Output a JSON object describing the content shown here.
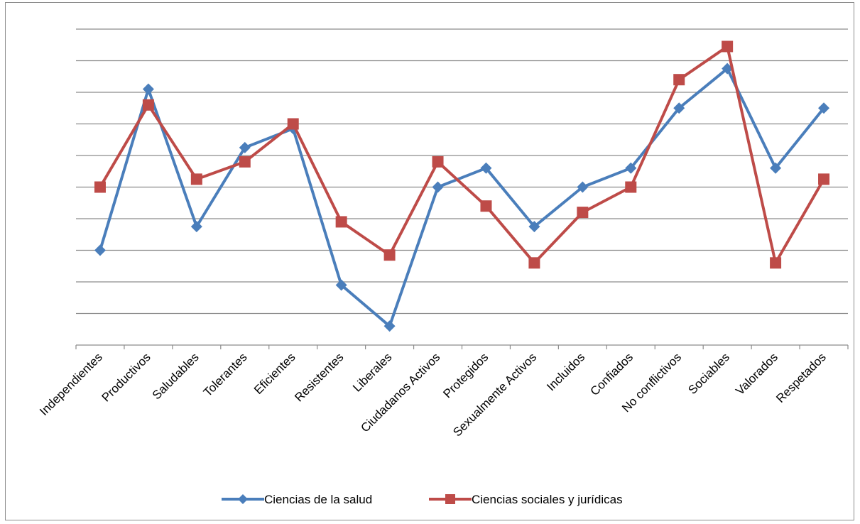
{
  "chart_data": {
    "type": "line",
    "title": "",
    "xlabel": "",
    "ylabel": "",
    "categories": [
      "Independientes",
      "Productivos",
      "Saludables",
      "Tolerantes",
      "Eficientes",
      "Resistentes",
      "Liberales",
      "Ciudadanos Activos",
      "Protegidos",
      "Sexualmente Activos",
      "Incluidos",
      "Confiados",
      "No conflictivos",
      "Sociables",
      "Valorados",
      "Respetados"
    ],
    "ylim": [
      0,
      10
    ],
    "grid": true,
    "y_tick_labels_visible": false,
    "legend_position": "bottom",
    "series": [
      {
        "name": "Ciencias de la salud",
        "color": "#4a7ebb",
        "marker": "diamond",
        "values": [
          3.0,
          8.1,
          3.75,
          6.25,
          6.85,
          1.9,
          0.6,
          5.0,
          5.6,
          3.75,
          5.0,
          5.6,
          7.5,
          8.75,
          5.6,
          7.5
        ]
      },
      {
        "name": "Ciencias sociales y jurídicas",
        "color": "#be4b48",
        "marker": "square",
        "values": [
          5.0,
          7.6,
          5.25,
          5.8,
          7.0,
          3.9,
          2.85,
          5.8,
          4.4,
          2.6,
          4.2,
          5.0,
          8.4,
          9.45,
          2.6,
          5.25
        ]
      }
    ]
  }
}
